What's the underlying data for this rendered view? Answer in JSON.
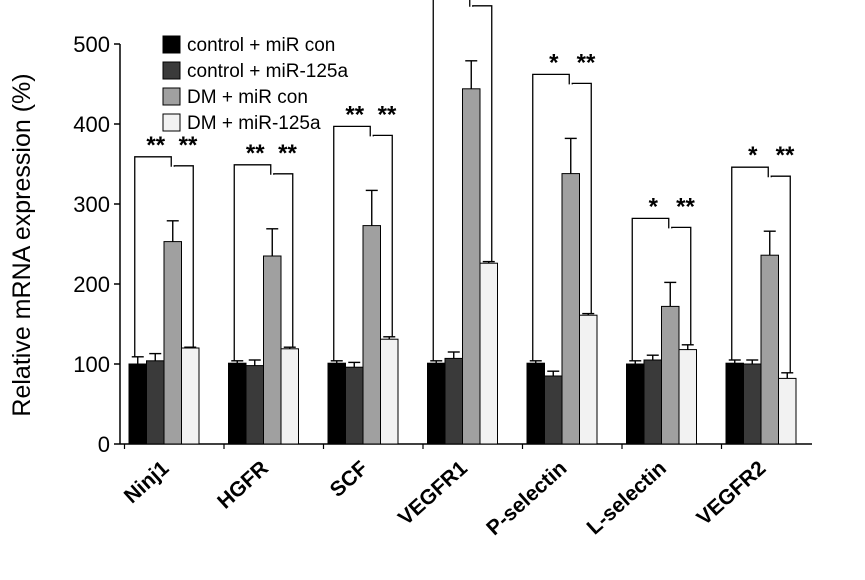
{
  "chart_data": {
    "type": "bar",
    "ylabel": "Relative mRNA expression (%)",
    "ylim": [
      0,
      500
    ],
    "yticks": [
      0,
      100,
      200,
      300,
      400,
      500
    ],
    "grid": false,
    "legend_position": "top-left",
    "categories": [
      "Ninj1",
      "HGFR",
      "SCF",
      "VEGFR1",
      "P-selectin",
      "L-selectin",
      "VEGFR2"
    ],
    "series": [
      {
        "name": "control + miR con",
        "color": "#000000",
        "values": [
          100,
          101,
          101,
          101,
          101,
          100,
          101
        ],
        "errors": [
          9,
          3,
          3,
          3,
          3,
          4,
          4
        ]
      },
      {
        "name": "control + miR-125a",
        "color": "#3a3a3a",
        "values": [
          104,
          98,
          96,
          107,
          85,
          105,
          100
        ],
        "errors": [
          9,
          7,
          6,
          8,
          6,
          6,
          5
        ]
      },
      {
        "name": "DM + miR con",
        "color": "#a0a0a0",
        "values": [
          253,
          235,
          273,
          444,
          338,
          172,
          236
        ],
        "errors": [
          26,
          34,
          44,
          35,
          44,
          30,
          30
        ]
      },
      {
        "name": "DM + miR-125a",
        "color": "#f2f2f2",
        "values": [
          120,
          119,
          131,
          226,
          161,
          118,
          82
        ],
        "errors": [
          1,
          2,
          3,
          2,
          2,
          6,
          7
        ]
      }
    ],
    "significance": [
      {
        "category": "Ninj1",
        "labels": [
          "**",
          "**"
        ]
      },
      {
        "category": "HGFR",
        "labels": [
          "**",
          "**"
        ]
      },
      {
        "category": "SCF",
        "labels": [
          "**",
          "**"
        ]
      },
      {
        "category": "VEGFR1",
        "labels": [
          "**",
          "*"
        ]
      },
      {
        "category": "P-selectin",
        "labels": [
          "*",
          "**"
        ]
      },
      {
        "category": "L-selectin",
        "labels": [
          "*",
          "**"
        ]
      },
      {
        "category": "VEGFR2",
        "labels": [
          "*",
          "**"
        ]
      }
    ]
  }
}
